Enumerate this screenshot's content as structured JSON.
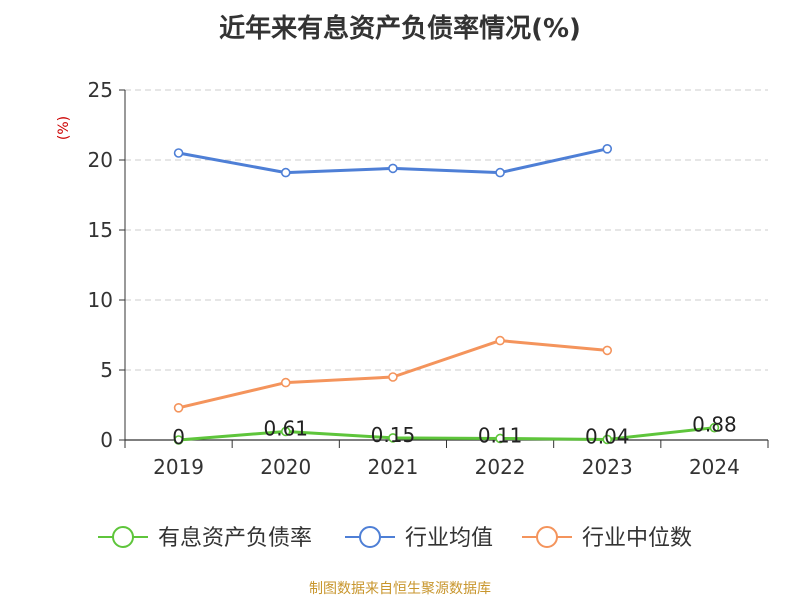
{
  "chart_data": {
    "type": "line",
    "title": "近年来有息资产负债率情况(%)",
    "unit_label": "(%)",
    "categories": [
      "2019",
      "2020",
      "2021",
      "2022",
      "2023",
      "2024"
    ],
    "y_ticks": [
      "0",
      "5",
      "10",
      "15",
      "20",
      "25"
    ],
    "ylim": [
      0,
      25
    ],
    "grid": true,
    "legend_position": "bottom",
    "series": [
      {
        "name": "有息资产负债率",
        "color": "#5ec53b",
        "values": [
          0,
          0.61,
          0.15,
          0.11,
          0.04,
          0.88
        ],
        "labels": [
          "0",
          "0.61",
          "0.15",
          "0.11",
          "0.04",
          "0.88"
        ]
      },
      {
        "name": "行业均值",
        "color": "#4e7fd6",
        "values": [
          20.5,
          19.1,
          19.4,
          19.1,
          20.8,
          null
        ]
      },
      {
        "name": "行业中位数",
        "color": "#f4945c",
        "values": [
          2.3,
          4.1,
          4.5,
          7.1,
          6.4,
          null
        ]
      }
    ]
  },
  "source": {
    "text": "制图数据来自恒生聚源数据库",
    "color": "#c8962d"
  },
  "colors": {
    "axis": "#333333",
    "grid": "#cccccc",
    "unit": "#cc0000"
  }
}
